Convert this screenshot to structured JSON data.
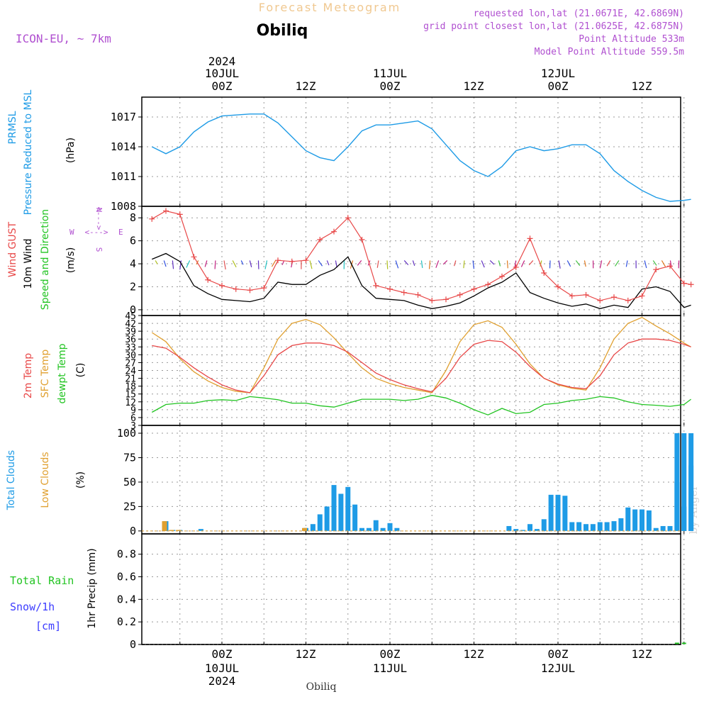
{
  "header": {
    "title": "Forecast Meteogram",
    "location": "Obiliq",
    "model": "ICON-EU, ~ 7km",
    "requested": "requested lon,lat (21.0671E, 42.6869N)",
    "gridpoint": "grid point closest lon,lat (21.0625E, 42.6875N)",
    "altitude": "Point Altitude 533m",
    "model_altitude": "Model Point Altitude 559.5m"
  },
  "footer": {
    "location": "Obiliq",
    "credit": "by Angel"
  },
  "time_axis": {
    "year": "2024",
    "top_dates": [
      "10JUL",
      "11JUL",
      "12JUL"
    ],
    "hour_labels": [
      "00Z",
      "12Z",
      "00Z",
      "12Z",
      "00Z",
      "12Z"
    ],
    "bottom_dates": [
      "10JUL",
      "11JUL",
      "12JUL"
    ]
  },
  "colors": {
    "pressure": "#1e9be6",
    "gust": "#e84848",
    "wind": "#000000",
    "temp2m": "#e84848",
    "sfc": "#e0a030",
    "dewpt": "#22c422",
    "total_cloud": "#1e9be6",
    "low_cloud": "#e0a030",
    "rain": "#22c422",
    "snow": "#3c3cff",
    "label_purple": "#b050d0"
  },
  "chart_data": [
    {
      "type": "line",
      "panel": "pressure",
      "title": "PRMSL Pressure Reduced to MSL",
      "ylabel_lines": [
        "PRMSL",
        "Pressure Reduced to MSL"
      ],
      "unit": "(hPa)",
      "ylim": [
        1008,
        1019
      ],
      "yticks": [
        "1008",
        "1011",
        "1014",
        "1017"
      ],
      "x_hours": [
        -10,
        -8,
        -6,
        -4,
        -2,
        0,
        2,
        4,
        6,
        8,
        10,
        12,
        14,
        16,
        18,
        20,
        22,
        24,
        26,
        28,
        30,
        32,
        34,
        36,
        38,
        40,
        42,
        44,
        46,
        48,
        50,
        52,
        54,
        56,
        58,
        60,
        62,
        64,
        66,
        67
      ],
      "series": [
        {
          "name": "PRMSL",
          "values": [
            1014,
            1013.3,
            1014,
            1015.5,
            1016.5,
            1017.1,
            1017.2,
            1017.3,
            1017.3,
            1016.4,
            1015,
            1013.6,
            1012.9,
            1012.6,
            1014,
            1015.6,
            1016.2,
            1016.2,
            1016.4,
            1016.6,
            1015.8,
            1014.2,
            1012.6,
            1011.6,
            1011,
            1012,
            1013.6,
            1014,
            1013.6,
            1013.8,
            1014.2,
            1014.2,
            1013.3,
            1011.6,
            1010.5,
            1009.6,
            1008.9,
            1008.5,
            1008.6,
            1008.7
          ]
        }
      ]
    },
    {
      "type": "line",
      "panel": "wind",
      "title": "Wind GUST / 10m Wind Speed and Direction",
      "ylabel_gust": "Wind GUST",
      "ylabel_wind": "10m Wind",
      "ylabel_dir": "Speed and Direction",
      "unit": "(m/s)",
      "compass": {
        "w": "W",
        "e": "E",
        "arrow": "<--->",
        "n": "N",
        "s": "S"
      },
      "ylim": [
        -0.5,
        9
      ],
      "yticks": [
        "0",
        "2",
        "4",
        "6",
        "8"
      ],
      "x_hours": [
        -10,
        -8,
        -6,
        -4,
        -2,
        0,
        2,
        4,
        6,
        8,
        10,
        12,
        14,
        16,
        18,
        20,
        22,
        24,
        26,
        28,
        30,
        32,
        34,
        36,
        38,
        40,
        42,
        44,
        46,
        48,
        50,
        52,
        54,
        56,
        58,
        60,
        62,
        64,
        66,
        67
      ],
      "series": [
        {
          "name": "Wind GUST",
          "values": [
            7.9,
            8.6,
            8.3,
            4.6,
            2.6,
            2.1,
            1.8,
            1.7,
            1.9,
            4.3,
            4.2,
            4.3,
            6.1,
            6.8,
            8.0,
            6.1,
            2.1,
            1.8,
            1.5,
            1.3,
            0.8,
            0.9,
            1.3,
            1.8,
            2.2,
            2.9,
            3.7,
            6.2,
            3.2,
            2.0,
            1.2,
            1.3,
            0.8,
            1.1,
            0.8,
            1.2,
            3.5,
            3.8,
            2.3,
            2.2
          ]
        },
        {
          "name": "10m Wind",
          "values": [
            4.4,
            4.9,
            4.2,
            2.1,
            1.4,
            0.9,
            0.8,
            0.7,
            1.0,
            2.4,
            2.2,
            2.2,
            3.0,
            3.5,
            4.6,
            2.1,
            1.0,
            0.9,
            0.8,
            0.4,
            0.1,
            0.3,
            0.6,
            1.2,
            1.9,
            2.4,
            3.2,
            1.5,
            1.0,
            0.6,
            0.3,
            0.5,
            0.1,
            0.4,
            0.2,
            1.8,
            2.0,
            1.6,
            0.2,
            0.4
          ]
        }
      ],
      "direction_arrow_count": 62
    },
    {
      "type": "line",
      "panel": "temperature",
      "title": "2m Temp / SFC Temp / dewpt Temp",
      "ylabel_lines": [
        "2m Temp",
        "SFC Temp",
        "dewpt Temp"
      ],
      "unit": "(C)",
      "ylim": [
        3,
        45
      ],
      "yticks": [
        "3",
        "6",
        "9",
        "12",
        "15",
        "18",
        "21",
        "24",
        "27",
        "30",
        "33",
        "36",
        "39",
        "42",
        "45"
      ],
      "x_hours": [
        -10,
        -8,
        -6,
        -4,
        -2,
        0,
        2,
        4,
        6,
        8,
        10,
        12,
        14,
        16,
        18,
        20,
        22,
        24,
        26,
        28,
        30,
        32,
        34,
        36,
        38,
        40,
        42,
        44,
        46,
        48,
        50,
        52,
        54,
        56,
        58,
        60,
        62,
        64,
        66,
        67
      ],
      "series": [
        {
          "name": "2m Temp",
          "values": [
            33.5,
            32.5,
            29,
            25,
            21.5,
            18.5,
            16.5,
            15.5,
            22,
            30,
            33.5,
            34.5,
            34.5,
            33.5,
            31,
            27,
            23,
            20.5,
            18.5,
            17,
            15.8,
            21,
            29,
            34,
            35.5,
            35,
            31,
            25.5,
            21,
            18.8,
            17.5,
            17,
            22,
            30,
            34.5,
            36,
            36,
            35.5,
            34,
            33
          ]
        },
        {
          "name": "SFC Temp",
          "values": [
            38.5,
            35,
            28.5,
            23.5,
            20,
            17.5,
            16,
            15.5,
            25,
            36,
            42,
            43.5,
            41.5,
            36.5,
            30.5,
            25,
            21,
            19,
            17.5,
            16.5,
            15.5,
            24,
            35,
            41.5,
            43,
            40.5,
            34,
            26.5,
            21,
            18.5,
            17.2,
            16.5,
            25,
            36,
            42,
            44.3,
            41,
            38,
            34.5,
            33
          ]
        },
        {
          "name": "dewpt Temp",
          "values": [
            8,
            11,
            11.5,
            11.5,
            12.5,
            12.8,
            12.5,
            14,
            13.5,
            12.8,
            11.5,
            11.5,
            10.5,
            10,
            11.5,
            13,
            13,
            13,
            12.5,
            13,
            14.5,
            13.5,
            11.5,
            9,
            7,
            9.5,
            7.5,
            8,
            11,
            11.5,
            12.5,
            13,
            14,
            13.5,
            12,
            11,
            10.7,
            10.3,
            11,
            13
          ]
        }
      ]
    },
    {
      "type": "bar",
      "panel": "clouds",
      "title": "Total Clouds / Low Clouds",
      "ylabel_lines": [
        "Total Clouds",
        "Low Clouds"
      ],
      "unit": "(%)",
      "ylim": [
        -3,
        108
      ],
      "yticks": [
        "0",
        "25",
        "50",
        "75",
        "100"
      ],
      "x_hours": [
        -8,
        -7,
        -6,
        -5,
        -4,
        -3,
        -2,
        -1,
        0,
        1,
        2,
        3,
        4,
        5,
        6,
        7,
        8,
        9,
        10,
        11,
        12,
        13,
        14,
        15,
        16,
        17,
        18,
        19,
        20,
        21,
        22,
        23,
        24,
        25,
        26,
        27,
        28,
        29,
        30,
        31,
        32,
        33,
        34,
        35,
        36,
        37,
        38,
        39,
        40,
        41,
        42,
        43,
        44,
        45,
        46,
        47,
        48,
        49,
        50,
        51,
        52,
        53,
        54,
        55,
        56,
        57,
        58,
        59,
        60,
        61,
        62,
        63,
        64,
        65,
        66,
        67
      ],
      "series": [
        {
          "name": "Total Clouds",
          "values": [
            10,
            1,
            1,
            0,
            0,
            2,
            0,
            0,
            0,
            0,
            0,
            0,
            0,
            0,
            0,
            0,
            0,
            0,
            0,
            0,
            3,
            7,
            17,
            25,
            47,
            38,
            45,
            27,
            3,
            3,
            11,
            3,
            8,
            3,
            0,
            0,
            0,
            0,
            0,
            0,
            0,
            0,
            0,
            0,
            0,
            0,
            0,
            0,
            0,
            5,
            2,
            1,
            7,
            2,
            12,
            37,
            37,
            36,
            9,
            9,
            7,
            7,
            9,
            9,
            10,
            13,
            24,
            22,
            22,
            21,
            3,
            5,
            5,
            50,
            25,
            100
          ]
        },
        {
          "name": "Low Clouds",
          "values": [
            10,
            1,
            1,
            0,
            0,
            0,
            0,
            0,
            0,
            0,
            0,
            0,
            0,
            0,
            0,
            0,
            0,
            0,
            0,
            0,
            3,
            0,
            0,
            0,
            0,
            0,
            0,
            0,
            0,
            0,
            0,
            0,
            0,
            0,
            0,
            0,
            0,
            0,
            0,
            0,
            0,
            0,
            0,
            0,
            0,
            0,
            0,
            0,
            0,
            0,
            0,
            0,
            0,
            0,
            0,
            0,
            0,
            0,
            0,
            0,
            0,
            0,
            0,
            0,
            0,
            0,
            0,
            0,
            0,
            0,
            0,
            0,
            0,
            0,
            0,
            0
          ]
        },
        {
          "name": "Total Clouds (extra)",
          "x_hours": [
            65,
            66,
            67
          ],
          "values": [
            100,
            100,
            67
          ]
        }
      ]
    },
    {
      "type": "bar",
      "panel": "precip",
      "title": "Total Rain / Snow 1hr Precip",
      "ylabel_rain": "Total Rain",
      "ylabel_snow": "Snow/1h",
      "ylabel_snow_unit": "[cm]",
      "unit": "1hr Precip (mm)",
      "ylim": [
        0,
        0.98
      ],
      "yticks": [
        "0",
        "0.2",
        "0.4",
        "0.6",
        "0.8"
      ],
      "series": [
        {
          "name": "Total Rain",
          "x_hours": [
            65,
            66
          ],
          "values": [
            0.01,
            0.01
          ]
        },
        {
          "name": "Snow",
          "x_hours": [],
          "values": []
        }
      ]
    }
  ]
}
